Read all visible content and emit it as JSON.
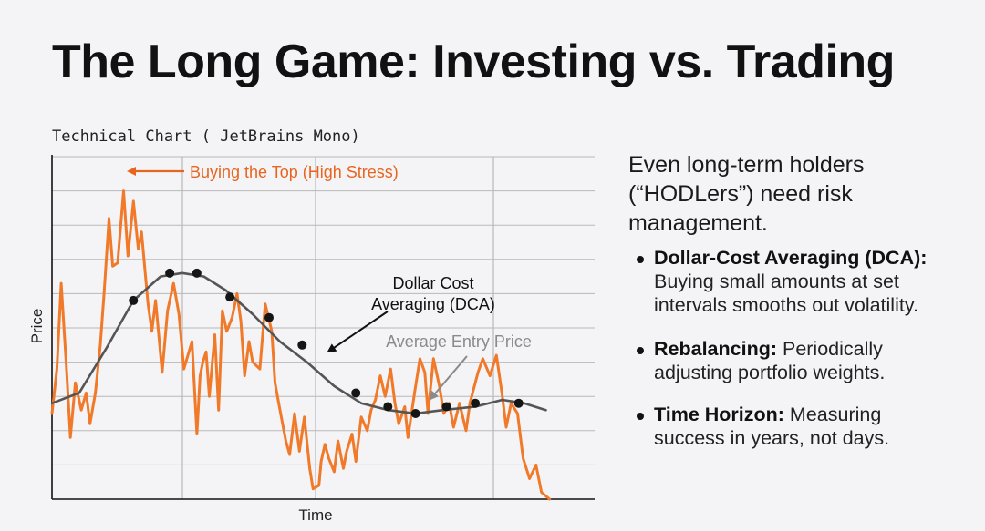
{
  "page": {
    "title": "The Long Game: Investing vs. Trading",
    "chart_caption": "Technical Chart ( JetBrains Mono)",
    "intro": "Even long-term holders (“HODLers”) need risk management.",
    "bullets": [
      {
        "term": "Dollar-Cost Averaging (DCA):",
        "text": " Buying small amounts at set intervals smooths out volatility."
      },
      {
        "term": "Rebalancing:",
        "text": " Periodically adjusting portfolio weights."
      },
      {
        "term": "Time Horizon:",
        "text": " Measuring success in years, not days."
      }
    ]
  },
  "chart_data": {
    "type": "line",
    "xlabel": "Time",
    "ylabel": "Price",
    "xlim": [
      0,
      100
    ],
    "ylim": [
      0,
      100
    ],
    "grid": true,
    "colors": {
      "price": "#f07a2a",
      "average": "#555555",
      "annotation_top": "#e8651f",
      "annotation_gray": "#8a8a8a",
      "grid": "#b8b8b8"
    },
    "series": [
      {
        "key": "price",
        "values": [
          [
            0.0,
            25
          ],
          [
            0.9,
            38
          ],
          [
            1.7,
            63
          ],
          [
            2.6,
            40
          ],
          [
            3.4,
            18
          ],
          [
            4.3,
            34
          ],
          [
            5.4,
            26
          ],
          [
            6.3,
            31
          ],
          [
            7.0,
            22
          ],
          [
            8.0,
            31
          ],
          [
            8.9,
            45
          ],
          [
            9.6,
            60
          ],
          [
            10.5,
            82
          ],
          [
            11.2,
            68
          ],
          [
            12.1,
            69
          ],
          [
            13.2,
            90
          ],
          [
            14.0,
            71
          ],
          [
            15.0,
            87
          ],
          [
            15.9,
            73
          ],
          [
            16.5,
            78
          ],
          [
            17.7,
            57
          ],
          [
            18.4,
            49
          ],
          [
            19.1,
            58
          ],
          [
            20.3,
            37
          ],
          [
            21.3,
            55
          ],
          [
            22.4,
            63
          ],
          [
            23.4,
            54
          ],
          [
            24.3,
            38
          ],
          [
            25.8,
            46
          ],
          [
            26.7,
            19
          ],
          [
            27.3,
            36
          ],
          [
            27.8,
            40
          ],
          [
            28.4,
            43
          ],
          [
            29.0,
            30
          ],
          [
            30.0,
            48
          ],
          [
            30.7,
            26
          ],
          [
            31.4,
            55
          ],
          [
            32.2,
            49
          ],
          [
            33.2,
            53
          ],
          [
            34.1,
            60
          ],
          [
            34.8,
            52
          ],
          [
            35.5,
            36
          ],
          [
            36.3,
            46
          ],
          [
            37.0,
            40
          ],
          [
            38.3,
            38
          ],
          [
            39.3,
            57
          ],
          [
            40.5,
            49
          ],
          [
            41.1,
            34
          ],
          [
            41.9,
            27
          ],
          [
            43.1,
            17
          ],
          [
            43.8,
            13
          ],
          [
            44.7,
            25
          ],
          [
            45.6,
            14
          ],
          [
            46.5,
            24
          ],
          [
            47.5,
            9
          ],
          [
            48.1,
            3
          ],
          [
            49.2,
            4
          ],
          [
            49.6,
            11
          ],
          [
            50.3,
            16
          ],
          [
            51.0,
            12
          ],
          [
            52.0,
            8
          ],
          [
            52.7,
            17
          ],
          [
            53.7,
            9
          ],
          [
            54.3,
            14
          ],
          [
            55.3,
            19
          ],
          [
            56.0,
            11
          ],
          [
            57.0,
            24
          ],
          [
            58.1,
            20
          ],
          [
            58.8,
            26
          ],
          [
            59.6,
            29
          ],
          [
            60.5,
            36
          ],
          [
            61.4,
            30
          ],
          [
            62.4,
            38
          ],
          [
            63.2,
            28
          ],
          [
            63.9,
            22
          ],
          [
            65.0,
            27
          ],
          [
            65.6,
            18
          ],
          [
            66.9,
            32
          ],
          [
            67.8,
            41
          ],
          [
            68.7,
            37
          ],
          [
            69.3,
            25
          ],
          [
            70.3,
            41
          ],
          [
            71.4,
            33
          ],
          [
            72.2,
            25
          ],
          [
            73.2,
            28
          ],
          [
            74.0,
            21
          ],
          [
            75.1,
            28
          ],
          [
            76.3,
            20
          ],
          [
            77.0,
            28
          ],
          [
            78.5,
            37
          ],
          [
            79.4,
            41
          ],
          [
            80.7,
            36
          ],
          [
            81.9,
            42
          ],
          [
            82.9,
            31
          ],
          [
            83.7,
            21
          ],
          [
            84.6,
            28
          ],
          [
            85.8,
            25
          ],
          [
            86.8,
            12
          ],
          [
            88.0,
            6
          ],
          [
            89.2,
            10
          ],
          [
            90.2,
            2
          ],
          [
            91.7,
            0
          ]
        ]
      },
      {
        "key": "average",
        "values": [
          [
            0.0,
            28
          ],
          [
            5.0,
            31
          ],
          [
            10.0,
            44
          ],
          [
            15.0,
            58
          ],
          [
            20.0,
            65
          ],
          [
            24.0,
            66
          ],
          [
            28.0,
            65
          ],
          [
            32.0,
            61
          ],
          [
            37.0,
            54
          ],
          [
            42.0,
            46
          ],
          [
            47.0,
            40
          ],
          [
            52.0,
            33
          ],
          [
            57.0,
            28
          ],
          [
            62.0,
            26
          ],
          [
            67.0,
            25
          ],
          [
            72.0,
            26
          ],
          [
            78.0,
            27
          ],
          [
            83.0,
            29
          ],
          [
            87.0,
            28
          ],
          [
            91.0,
            26
          ]
        ]
      }
    ],
    "dca_points": [
      [
        15.0,
        58
      ],
      [
        21.7,
        66
      ],
      [
        26.7,
        66
      ],
      [
        32.8,
        59
      ],
      [
        40.0,
        53
      ],
      [
        46.1,
        45
      ],
      [
        56.0,
        31
      ],
      [
        61.9,
        27
      ],
      [
        67.0,
        25
      ],
      [
        72.7,
        27
      ],
      [
        78.0,
        28
      ],
      [
        86.0,
        28
      ]
    ],
    "annotations": [
      {
        "key": "top",
        "text": "Buying the Top (High Stress)"
      },
      {
        "key": "dca",
        "text": "Dollar Cost Averaging (DCA)"
      },
      {
        "key": "avg",
        "text": "Average Entry Price"
      }
    ]
  }
}
